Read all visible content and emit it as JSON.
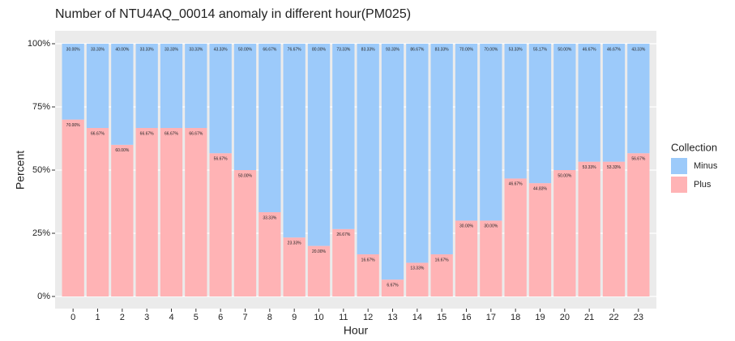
{
  "chart_data": {
    "type": "stacked_bar",
    "title": "Number of NTU4AQ_00014 anomaly in different hour(PM025)",
    "x_label": "Hour",
    "y_label": "Percent",
    "legend_title": "Collection",
    "legend": "right",
    "grid": true,
    "categories": [
      "0",
      "1",
      "2",
      "3",
      "4",
      "5",
      "6",
      "7",
      "8",
      "9",
      "10",
      "11",
      "12",
      "13",
      "14",
      "15",
      "16",
      "17",
      "18",
      "19",
      "20",
      "21",
      "22",
      "23"
    ],
    "series": [
      {
        "name": "Minus",
        "color": "#9ccafa",
        "values": [
          30,
          33.33,
          40,
          33.33,
          33.33,
          33.33,
          43.33,
          50,
          66.67,
          76.67,
          80,
          73.33,
          83.33,
          93.33,
          86.67,
          83.33,
          70,
          70,
          53.33,
          55.17,
          50,
          46.67,
          46.67,
          43.33
        ],
        "value_labels": [
          "30.00%",
          "33.33%",
          "40.00%",
          "33.33%",
          "33.33%",
          "33.33%",
          "43.33%",
          "50.00%",
          "66.67%",
          "76.67%",
          "80.00%",
          "73.33%",
          "83.33%",
          "93.33%",
          "86.67%",
          "83.33%",
          "70.00%",
          "70.00%",
          "53.33%",
          "55.17%",
          "50.00%",
          "46.67%",
          "46.67%",
          "43.33%"
        ]
      },
      {
        "name": "Plus",
        "color": "#ffb3b5",
        "values": [
          70,
          66.67,
          60,
          66.67,
          66.67,
          66.67,
          56.67,
          50,
          33.33,
          23.33,
          20,
          26.67,
          16.67,
          6.67,
          13.33,
          16.67,
          30,
          30,
          46.67,
          44.83,
          50,
          53.33,
          53.33,
          56.67
        ],
        "value_labels": [
          "70.00%",
          "66.67%",
          "60.00%",
          "66.67%",
          "66.67%",
          "66.67%",
          "56.67%",
          "50.00%",
          "33.33%",
          "23.33%",
          "20.00%",
          "26.67%",
          "16.67%",
          "6.67%",
          "13.33%",
          "16.67%",
          "30.00%",
          "30.00%",
          "46.67%",
          "44.83%",
          "50.00%",
          "53.33%",
          "53.33%",
          "56.67%"
        ]
      }
    ],
    "ylim": [
      0,
      100
    ],
    "yticks": [
      {
        "value": 0,
        "label": "0%"
      },
      {
        "value": 25,
        "label": "25%"
      },
      {
        "value": 50,
        "label": "50%"
      },
      {
        "value": 75,
        "label": "75%"
      },
      {
        "value": 100,
        "label": "100%"
      }
    ]
  }
}
